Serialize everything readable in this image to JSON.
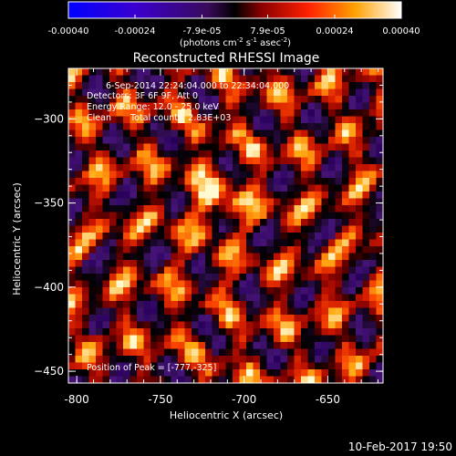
{
  "window": {
    "timestamp": "10-Feb-2017 19:50"
  },
  "colorbar": {
    "tick_labels": [
      "-0.00040",
      "-0.00024",
      "-7.9e-05",
      "7.9e-05",
      "0.00024",
      "0.00040"
    ],
    "tick_values": [
      -0.0004,
      -0.00024,
      -7.9e-05,
      7.9e-05,
      0.00024,
      0.0004
    ],
    "units_base": "(photons cm",
    "units_exp1": "-2",
    "units_mid": " s",
    "units_exp2": "-1",
    "units_mid2": " asec",
    "units_exp3": "-2",
    "units_end": ")",
    "range": [
      -0.0004,
      0.0004
    ]
  },
  "image": {
    "title": "Reconstructed RHESSI Image",
    "annotations": {
      "time_range": "6-Sep-2014 22:24:04.000 to 22:34:04.000",
      "detectors": "Detectors: 3F 6F 9F, Att 0",
      "energy_range": "Energy Range: 12.0 - 25.0 keV",
      "algorithm": "Clean",
      "total_counts": "Total counts: 2.83E+03",
      "peak_position": "Position of Peak = [-777,-325]"
    }
  },
  "chart_data": {
    "type": "heatmap",
    "title": "Reconstructed RHESSI Image",
    "xlabel": "Heliocentric X (arcsec)",
    "ylabel": "Heliocentric Y (arcsec)",
    "xlim": [
      -805,
      -617
    ],
    "ylim": [
      -457,
      -270
    ],
    "x_ticks": [
      -800,
      -750,
      -700,
      -650
    ],
    "y_ticks": [
      -450,
      -400,
      -350,
      -300
    ],
    "x_tick_labels": [
      "-800",
      "-750",
      "-700",
      "-650"
    ],
    "y_tick_labels": [
      "−450",
      "−400",
      "−350",
      "−300"
    ],
    "colormap": "hot-cold (blue-purple-black-red-orange-yellow-white)",
    "peak": [
      -777,
      -325
    ],
    "grid": false
  }
}
